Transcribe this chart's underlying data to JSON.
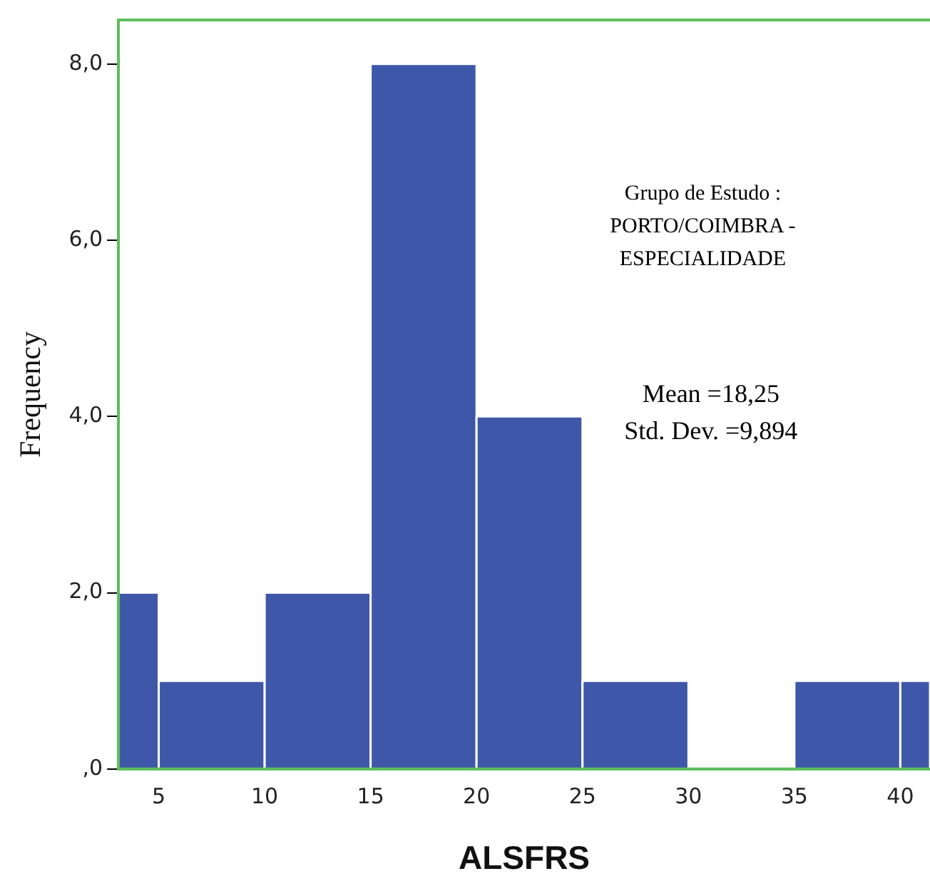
{
  "chart_data": {
    "type": "histogram",
    "xlabel": "ALSFRS",
    "ylabel": "Frequency",
    "bins": [
      3.1,
      5,
      10,
      15,
      20,
      25,
      30,
      35,
      40,
      41.4
    ],
    "values": [
      2,
      1,
      2,
      8,
      4,
      1,
      0,
      1,
      1
    ],
    "color": "#3f57a8",
    "xlim": [
      3.1,
      41.4
    ],
    "xticks": [
      5,
      10,
      15,
      20,
      25,
      30,
      35,
      40
    ],
    "ylim": [
      0,
      8.5
    ],
    "yticks": [
      {
        "value": 0,
        "label": ",0"
      },
      {
        "value": 2,
        "label": "2,0"
      },
      {
        "value": 4,
        "label": "4,0"
      },
      {
        "value": 6,
        "label": "6,0"
      },
      {
        "value": 8,
        "label": "8,0"
      }
    ],
    "annotations": [
      "Grupo de Estudo :\nPORTO/COIMBRA -\nESPECIALIDADE",
      "Mean =18,25\nStd. Dev. =9,894"
    ],
    "grid": false,
    "legend": false
  }
}
